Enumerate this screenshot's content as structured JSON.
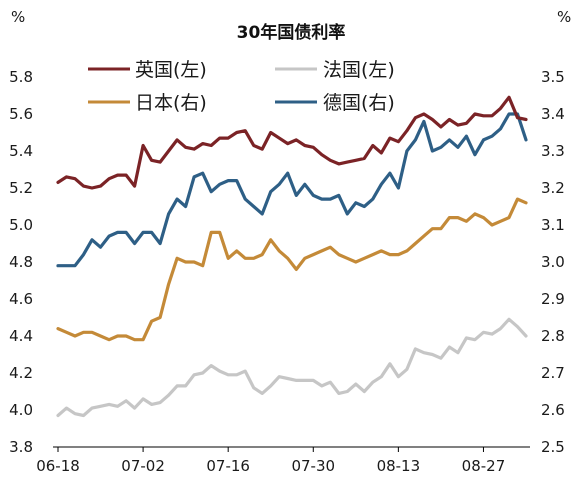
{
  "chart_data": {
    "type": "line",
    "title": "30年国债利率",
    "left_unit": "%",
    "right_unit": "%",
    "left_ylim": [
      3.8,
      5.8
    ],
    "left_yticks": [
      "3.8",
      "4.0",
      "4.2",
      "4.4",
      "4.6",
      "4.8",
      "5.0",
      "5.2",
      "5.4",
      "5.6",
      "5.8"
    ],
    "right_ylim": [
      2.5,
      3.5
    ],
    "right_yticks": [
      "2.5",
      "2.6",
      "2.7",
      "2.8",
      "2.9",
      "3.0",
      "3.1",
      "3.2",
      "3.3",
      "3.4",
      "3.5"
    ],
    "x_ticks": [
      "06-18",
      "07-02",
      "07-16",
      "07-30",
      "08-13",
      "08-27"
    ],
    "x_tick_positions": [
      0,
      10,
      20,
      30,
      40,
      50
    ],
    "x_range": [
      0,
      55
    ],
    "grid": false,
    "legend_position": "top",
    "series": [
      {
        "name": "英国(左)",
        "axis": "left",
        "color": "#7b2326",
        "x": [
          0,
          1,
          2,
          3,
          4,
          5,
          6,
          7,
          8,
          9,
          10,
          11,
          12,
          13,
          14,
          15,
          16,
          17,
          18,
          19,
          20,
          21,
          22,
          23,
          24,
          25,
          26,
          27,
          28,
          29,
          30,
          31,
          32,
          33,
          34,
          35,
          36,
          37,
          38,
          39,
          40,
          41,
          42,
          43,
          44,
          45,
          46,
          47,
          48,
          49,
          50,
          51,
          52,
          53,
          54,
          55
        ],
        "values": [
          5.23,
          5.26,
          5.25,
          5.21,
          5.2,
          5.21,
          5.25,
          5.27,
          5.27,
          5.21,
          5.43,
          5.35,
          5.34,
          5.4,
          5.46,
          5.42,
          5.41,
          5.44,
          5.43,
          5.47,
          5.47,
          5.5,
          5.51,
          5.43,
          5.41,
          5.5,
          5.47,
          5.44,
          5.46,
          5.43,
          5.42,
          5.38,
          5.35,
          5.33,
          5.34,
          5.35,
          5.36,
          5.43,
          5.39,
          5.47,
          5.45,
          5.51,
          5.58,
          5.6,
          5.57,
          5.53,
          5.57,
          5.54,
          5.55,
          5.6,
          5.59,
          5.59,
          5.63,
          5.69,
          5.58,
          5.57
        ]
      },
      {
        "name": "法国(左)",
        "axis": "left",
        "color": "#c6c6c6",
        "x": [
          0,
          1,
          2,
          3,
          4,
          5,
          6,
          7,
          8,
          9,
          10,
          11,
          12,
          13,
          14,
          15,
          16,
          17,
          18,
          19,
          20,
          21,
          22,
          23,
          24,
          25,
          26,
          27,
          28,
          29,
          30,
          31,
          32,
          33,
          34,
          35,
          36,
          37,
          38,
          39,
          40,
          41,
          42,
          43,
          44,
          45,
          46,
          47,
          48,
          49,
          50,
          51,
          52,
          53,
          54,
          55
        ],
        "values": [
          3.97,
          4.01,
          3.98,
          3.97,
          4.01,
          4.02,
          4.03,
          4.02,
          4.05,
          4.01,
          4.06,
          4.03,
          4.04,
          4.08,
          4.13,
          4.13,
          4.19,
          4.2,
          4.24,
          4.21,
          4.19,
          4.19,
          4.21,
          4.12,
          4.09,
          4.13,
          4.18,
          4.17,
          4.16,
          4.16,
          4.16,
          4.13,
          4.15,
          4.09,
          4.1,
          4.14,
          4.1,
          4.15,
          4.18,
          4.25,
          4.18,
          4.22,
          4.33,
          4.31,
          4.3,
          4.28,
          4.34,
          4.31,
          4.39,
          4.38,
          4.42,
          4.41,
          4.44,
          4.49,
          4.45,
          4.4
        ]
      },
      {
        "name": "日本(右)",
        "axis": "right",
        "color": "#c48a38",
        "x": [
          0,
          1,
          2,
          3,
          4,
          5,
          6,
          7,
          8,
          9,
          10,
          11,
          12,
          13,
          14,
          15,
          16,
          17,
          18,
          19,
          20,
          21,
          22,
          23,
          24,
          25,
          26,
          27,
          28,
          29,
          30,
          31,
          32,
          33,
          34,
          35,
          36,
          37,
          38,
          39,
          40,
          41,
          42,
          43,
          44,
          45,
          46,
          47,
          48,
          49,
          50,
          51,
          52,
          53,
          54,
          55
        ],
        "values": [
          2.82,
          2.81,
          2.8,
          2.81,
          2.81,
          2.8,
          2.79,
          2.8,
          2.8,
          2.79,
          2.79,
          2.84,
          2.85,
          2.94,
          3.01,
          3.0,
          3.0,
          2.99,
          3.08,
          3.08,
          3.01,
          3.03,
          3.01,
          3.01,
          3.02,
          3.06,
          3.03,
          3.01,
          2.98,
          3.01,
          3.02,
          3.03,
          3.04,
          3.02,
          3.01,
          3.0,
          3.01,
          3.02,
          3.03,
          3.02,
          3.02,
          3.03,
          3.05,
          3.07,
          3.09,
          3.09,
          3.12,
          3.12,
          3.11,
          3.13,
          3.12,
          3.1,
          3.11,
          3.12,
          3.17,
          3.16
        ]
      },
      {
        "name": "德国(右)",
        "axis": "right",
        "color": "#2e5f86",
        "x": [
          0,
          1,
          2,
          3,
          4,
          5,
          6,
          7,
          8,
          9,
          10,
          11,
          12,
          13,
          14,
          15,
          16,
          17,
          18,
          19,
          20,
          21,
          22,
          23,
          24,
          25,
          26,
          27,
          28,
          29,
          30,
          31,
          32,
          33,
          34,
          35,
          36,
          37,
          38,
          39,
          40,
          41,
          42,
          43,
          44,
          45,
          46,
          47,
          48,
          49,
          50,
          51,
          52,
          53,
          54,
          55
        ],
        "values": [
          2.99,
          2.99,
          2.99,
          3.02,
          3.06,
          3.04,
          3.07,
          3.08,
          3.08,
          3.05,
          3.08,
          3.08,
          3.05,
          3.13,
          3.17,
          3.15,
          3.23,
          3.24,
          3.19,
          3.21,
          3.22,
          3.22,
          3.17,
          3.15,
          3.13,
          3.19,
          3.21,
          3.24,
          3.18,
          3.21,
          3.18,
          3.17,
          3.17,
          3.18,
          3.13,
          3.16,
          3.15,
          3.17,
          3.21,
          3.24,
          3.2,
          3.3,
          3.33,
          3.38,
          3.3,
          3.31,
          3.33,
          3.31,
          3.34,
          3.29,
          3.33,
          3.34,
          3.36,
          3.4,
          3.4,
          3.33
        ]
      }
    ]
  }
}
